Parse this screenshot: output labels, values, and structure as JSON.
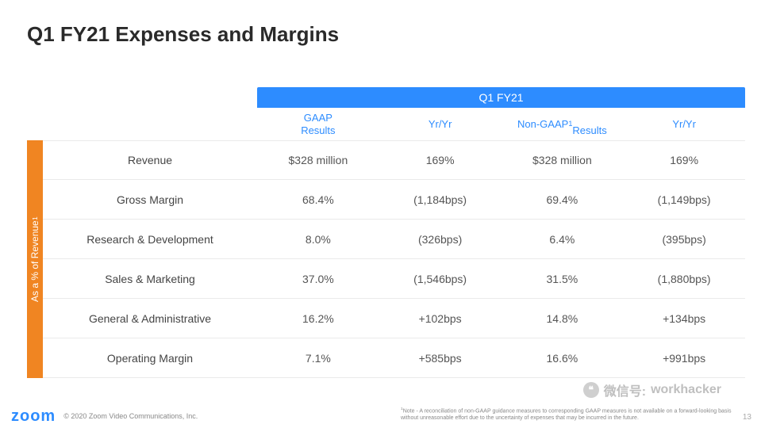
{
  "title": "Q1 FY21 Expenses and Margins",
  "period_header": "Q1 FY21",
  "sidebar_label": "As a % of Revenue¹",
  "columns": [
    "GAAP\nResults",
    "Yr/Yr",
    "Non-GAAP¹\nResults",
    "Yr/Yr"
  ],
  "rows": [
    {
      "label": "Revenue",
      "cells": [
        "$328 million",
        "169%",
        "$328 million",
        "169%"
      ]
    },
    {
      "label": "Gross Margin",
      "cells": [
        "68.4%",
        "(1,184bps)",
        "69.4%",
        "(1,149bps)"
      ]
    },
    {
      "label": "Research & Development",
      "cells": [
        "8.0%",
        "(326bps)",
        "6.4%",
        "(395bps)"
      ]
    },
    {
      "label": "Sales & Marketing",
      "cells": [
        "37.0%",
        "(1,546bps)",
        "31.5%",
        "(1,880bps)"
      ]
    },
    {
      "label": "General & Administrative",
      "cells": [
        "16.2%",
        "+102bps",
        "14.8%",
        "+134bps"
      ]
    },
    {
      "label": "Operating Margin",
      "cells": [
        "7.1%",
        "+585bps",
        "16.6%",
        "+991bps"
      ]
    }
  ],
  "logo_text": "zoom",
  "copyright": "© 2020 Zoom Video Communications, Inc.",
  "footnote": "¹Note - A reconciliation of non-GAAP guidance measures to corresponding GAAP measures is not available on a forward-looking basis without unreasonable effort due to the uncertainty of expenses that may be incurred in the future.",
  "page_number": "13",
  "watermark": {
    "prefix": "微信号:",
    "handle": "workhacker"
  },
  "colors": {
    "accent_blue": "#2d8cff",
    "accent_orange": "#f08522",
    "text_dark": "#2a2a2a",
    "text_body": "#555555",
    "border": "#eaeaea",
    "muted": "#888888"
  }
}
